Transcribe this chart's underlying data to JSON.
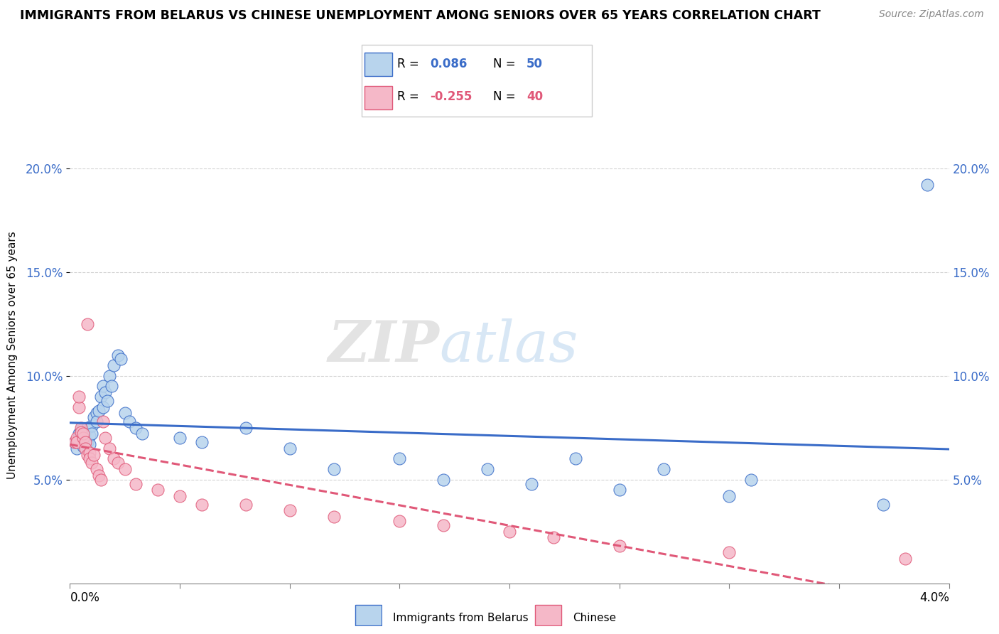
{
  "title": "IMMIGRANTS FROM BELARUS VS CHINESE UNEMPLOYMENT AMONG SENIORS OVER 65 YEARS CORRELATION CHART",
  "source": "Source: ZipAtlas.com",
  "ylabel": "Unemployment Among Seniors over 65 years",
  "xlim": [
    0.0,
    0.04
  ],
  "ylim": [
    0.0,
    0.22
  ],
  "yticks": [
    0.05,
    0.1,
    0.15,
    0.2
  ],
  "ytick_labels": [
    "5.0%",
    "10.0%",
    "15.0%",
    "20.0%"
  ],
  "color_blue": "#b8d4ed",
  "color_pink": "#f5b8c8",
  "color_blue_line": "#3a6cc8",
  "color_pink_line": "#e05878",
  "watermark_zip": "ZIP",
  "watermark_atlas": "atlas",
  "blue_x": [
    0.0002,
    0.0003,
    0.0004,
    0.0004,
    0.0005,
    0.0005,
    0.0006,
    0.0006,
    0.0007,
    0.0007,
    0.0008,
    0.0008,
    0.0009,
    0.0009,
    0.001,
    0.001,
    0.0011,
    0.0012,
    0.0012,
    0.0013,
    0.0014,
    0.0015,
    0.0015,
    0.0016,
    0.0017,
    0.0018,
    0.0019,
    0.002,
    0.0022,
    0.0023,
    0.0025,
    0.0027,
    0.003,
    0.0033,
    0.005,
    0.006,
    0.008,
    0.01,
    0.012,
    0.015,
    0.017,
    0.019,
    0.021,
    0.023,
    0.025,
    0.027,
    0.03,
    0.031,
    0.037,
    0.039
  ],
  "blue_y": [
    0.068,
    0.065,
    0.072,
    0.07,
    0.068,
    0.074,
    0.066,
    0.071,
    0.069,
    0.073,
    0.075,
    0.068,
    0.071,
    0.067,
    0.076,
    0.072,
    0.08,
    0.082,
    0.078,
    0.083,
    0.09,
    0.095,
    0.085,
    0.092,
    0.088,
    0.1,
    0.095,
    0.105,
    0.11,
    0.108,
    0.082,
    0.078,
    0.075,
    0.072,
    0.07,
    0.068,
    0.075,
    0.065,
    0.055,
    0.06,
    0.05,
    0.055,
    0.048,
    0.06,
    0.045,
    0.055,
    0.042,
    0.05,
    0.038,
    0.192
  ],
  "pink_x": [
    0.0002,
    0.0003,
    0.0003,
    0.0004,
    0.0004,
    0.0005,
    0.0005,
    0.0006,
    0.0006,
    0.0007,
    0.0007,
    0.0008,
    0.0008,
    0.0009,
    0.0009,
    0.001,
    0.0011,
    0.0012,
    0.0013,
    0.0014,
    0.0015,
    0.0016,
    0.0018,
    0.002,
    0.0022,
    0.0025,
    0.003,
    0.004,
    0.005,
    0.006,
    0.008,
    0.01,
    0.012,
    0.015,
    0.017,
    0.02,
    0.022,
    0.025,
    0.03,
    0.038
  ],
  "pink_y": [
    0.068,
    0.07,
    0.068,
    0.085,
    0.09,
    0.075,
    0.073,
    0.07,
    0.072,
    0.068,
    0.065,
    0.125,
    0.062,
    0.063,
    0.06,
    0.058,
    0.062,
    0.055,
    0.052,
    0.05,
    0.078,
    0.07,
    0.065,
    0.06,
    0.058,
    0.055,
    0.048,
    0.045,
    0.042,
    0.038,
    0.038,
    0.035,
    0.032,
    0.03,
    0.028,
    0.025,
    0.022,
    0.018,
    0.015,
    0.012
  ]
}
